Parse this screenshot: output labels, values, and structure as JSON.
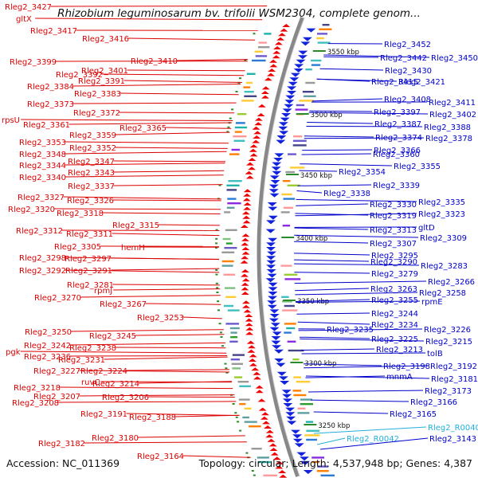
{
  "title": "Rhizobium leguminosarum bv. trifolii WSM2304, complete genom...",
  "footer": {
    "accession": "Accession: NC_011369",
    "summary": "Topology: circular; Length: 4,537,948 bp; Genes: 4,387"
  },
  "colors": {
    "left_labels": "#dd0000",
    "right_labels": "#0000cc",
    "rna_labels": "#22b0dd",
    "backbone": "#888888",
    "tick_marks": "#2a8a2a"
  },
  "scale_labels": [
    "3550 kbp",
    "3500 kbp",
    "3450 kbp",
    "3400 kbp",
    "3350 kbp",
    "3300 kbp",
    "3250 kbp"
  ],
  "left_labels": [
    "Rleg2_3427",
    "gltX",
    "Rleg2_3417",
    "Rleg2_3416",
    "Rleg2_3410",
    "Rleg2_3399",
    "Rleg2_3401",
    "Rleg2_3392",
    "Rleg2_3391",
    "Rleg2_3384",
    "Rleg2_3383",
    "Rleg2_3373",
    "Rleg2_3372",
    "rpsU",
    "Rleg2_3361",
    "Rleg2_3365",
    "Rleg2_3359",
    "Rleg2_3353",
    "Rleg2_3352",
    "Rleg2_3348",
    "Rleg2_3347",
    "Rleg2_3344",
    "Rleg2_3343",
    "Rleg2_3340",
    "Rleg2_3337",
    "Rleg2_3327",
    "Rleg2_3326",
    "Rleg2_3320",
    "Rleg2_3318",
    "Rleg2_3315",
    "Rleg2_3312",
    "Rleg2_3311",
    "Rleg2_3305",
    "hemH",
    "Rleg2_3298",
    "Rleg2_3297",
    "Rleg2_3292",
    "Rleg2_3291",
    "Rleg2_3281",
    "rpmJ",
    "Rleg2_3270",
    "Rleg2_3267",
    "Rleg2_3253",
    "Rleg2_3250",
    "Rleg2_3245",
    "Rleg2_3242",
    "Rleg2_3238",
    "pgk",
    "Rleg2_3236",
    "Rleg2_3231",
    "Rleg2_3227",
    "Rleg2_3224",
    "Rleg2_3218",
    "ruvC",
    "Rleg2_3214",
    "Rleg2_3207",
    "Rleg2_3206",
    "Rleg2_3208",
    "Rleg2_3191",
    "Rleg2_3188",
    "Rleg2_3182",
    "Rleg2_3180",
    "Rleg2_3164"
  ],
  "right_labels": [
    "Rleg2_3452",
    "Rleg2_3442",
    "Rleg2_3450",
    "Rleg2_3430",
    "Rleg2_3415",
    "Rleg2_3421",
    "Rleg2_3408",
    "Rleg2_3411",
    "Rleg2_3397",
    "Rleg2_3402",
    "Rleg2_3387",
    "Rleg2_3388",
    "Rleg2_3374",
    "Rleg2_3378",
    "Rleg2_3366",
    "Rleg2_3360",
    "Rleg2_3355",
    "Rleg2_3354",
    "Rleg2_3339",
    "Rleg2_3338",
    "Rleg2_3335",
    "Rleg2_3330",
    "Rleg2_3323",
    "Rleg2_3319",
    "gltD",
    "Rleg2_3313",
    "Rleg2_3309",
    "Rleg2_3307",
    "Rleg2_3295",
    "Rleg2_3290",
    "Rleg2_3283",
    "Rleg2_3279",
    "Rleg2_3266",
    "Rleg2_3263",
    "Rleg2_3258",
    "rpmE",
    "Rleg2_3255",
    "Rleg2_3244",
    "Rleg2_3234",
    "Rleg2_3235",
    "Rleg2_3226",
    "Rleg2_3225",
    "Rleg2_3215",
    "Rleg2_3213",
    "tolB",
    "Rleg2_3198",
    "Rleg2_3192",
    "mnmA",
    "Rleg2_3181",
    "Rleg2_3173",
    "Rleg2_3166",
    "Rleg2_3165"
  ],
  "rna_labels": [
    "Rleg2_R0040",
    "Rleg2_R0042"
  ],
  "right_extra_labels": [
    "Rleg2_3143"
  ]
}
